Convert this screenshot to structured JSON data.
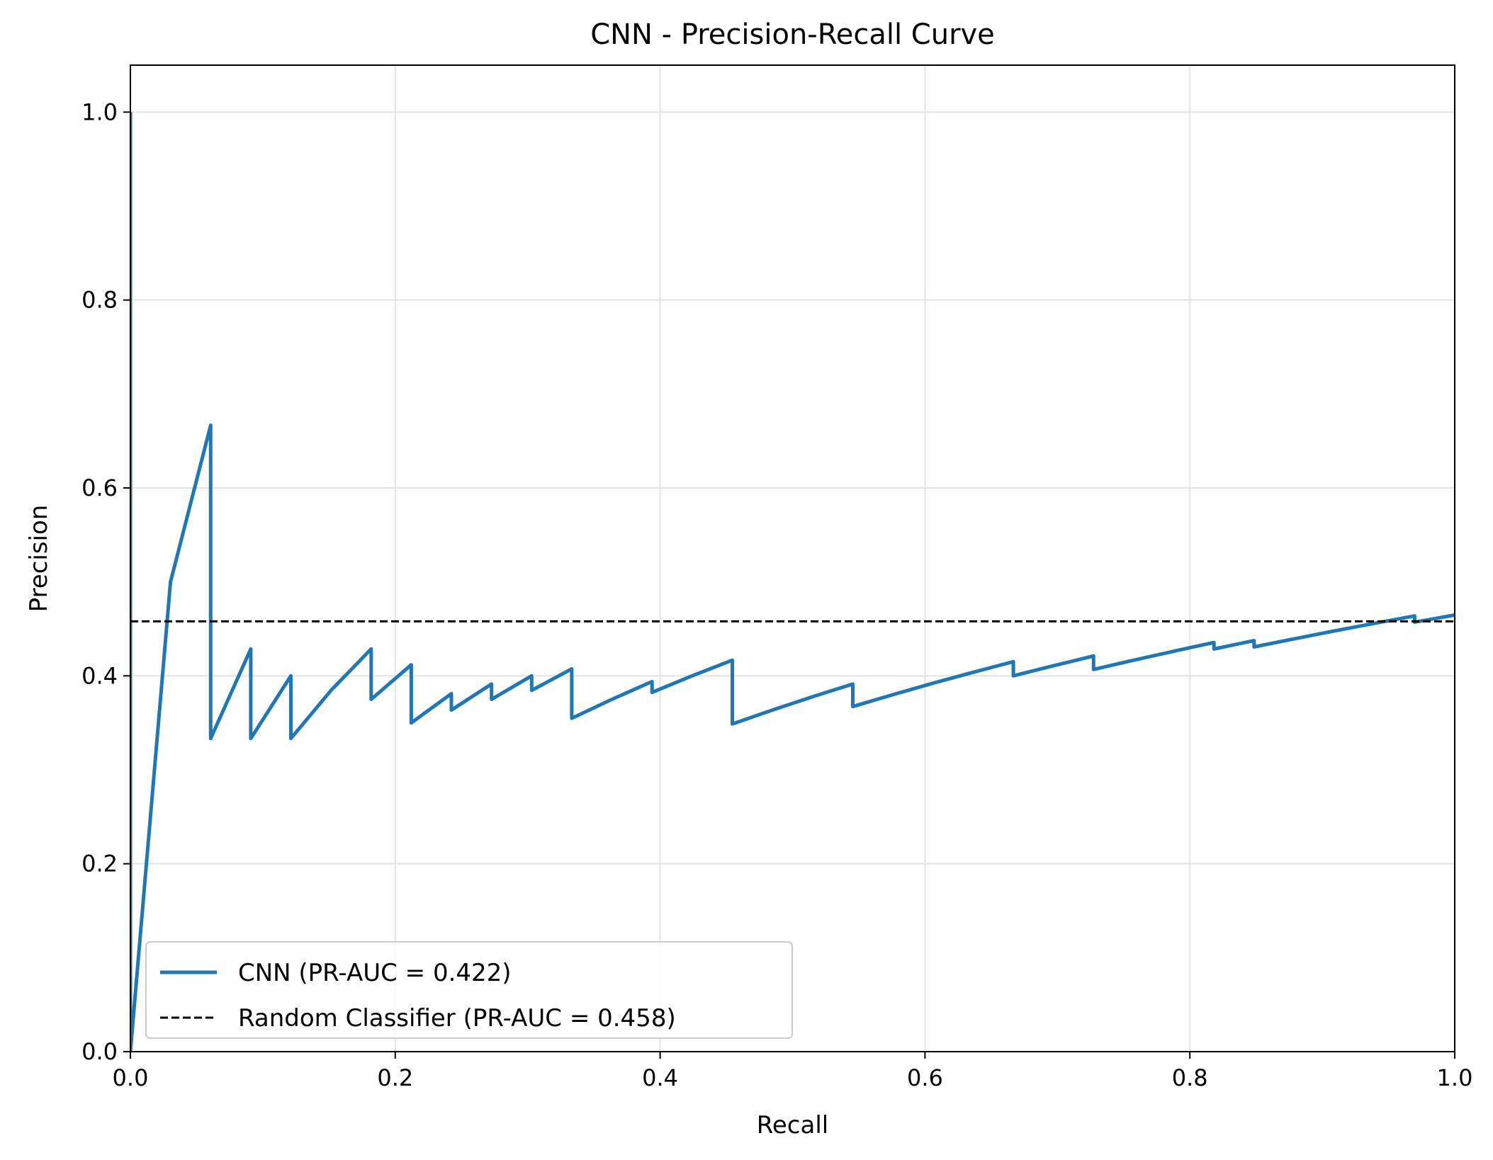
{
  "chart_data": {
    "type": "line",
    "title": "CNN - Precision-Recall Curve",
    "xlabel": "Recall",
    "ylabel": "Precision",
    "xlim": [
      0.0,
      1.0
    ],
    "ylim": [
      0.0,
      1.05
    ],
    "xticks": [
      "0.0",
      "0.2",
      "0.4",
      "0.6",
      "0.8",
      "1.0"
    ],
    "yticks": [
      "0.0",
      "0.2",
      "0.4",
      "0.6",
      "0.8",
      "1.0"
    ],
    "grid": true,
    "legend_position": "lower-left",
    "series": [
      {
        "name": "CNN (PR-AUC = 0.422)",
        "color": "#1f77b4",
        "style": "solid",
        "x": [
          0.0,
          0.0,
          0.0303,
          0.0606,
          0.0606,
          0.0909,
          0.0909,
          0.1212,
          0.1212,
          0.1515,
          0.1818,
          0.1818,
          0.2121,
          0.2121,
          0.2424,
          0.2424,
          0.2727,
          0.2727,
          0.303,
          0.303,
          0.3333,
          0.3333,
          0.3636,
          0.3939,
          0.3939,
          0.4242,
          0.4545,
          0.4545,
          0.4848,
          0.5152,
          0.5455,
          0.5455,
          0.5758,
          0.6061,
          0.6364,
          0.6667,
          0.6667,
          0.697,
          0.7273,
          0.7273,
          0.7576,
          0.7879,
          0.8182,
          0.8182,
          0.8485,
          0.8485,
          0.8788,
          0.9091,
          0.9394,
          0.9697,
          0.9697,
          1.0
        ],
        "y": [
          1.0,
          0.0,
          0.5,
          0.6667,
          0.3333,
          0.4286,
          0.3333,
          0.4,
          0.3333,
          0.3846,
          0.4286,
          0.375,
          0.4118,
          0.35,
          0.381,
          0.3636,
          0.3913,
          0.375,
          0.4,
          0.3846,
          0.4074,
          0.3548,
          0.375,
          0.3939,
          0.3824,
          0.4,
          0.4167,
          0.3488,
          0.3636,
          0.3778,
          0.3913,
          0.3673,
          0.38,
          0.3922,
          0.4038,
          0.4151,
          0.4,
          0.4107,
          0.4211,
          0.4068,
          0.4167,
          0.4262,
          0.4355,
          0.4286,
          0.4375,
          0.4308,
          0.4394,
          0.4478,
          0.4559,
          0.4638,
          0.4571,
          0.4648
        ]
      },
      {
        "name": "Random Classifier (PR-AUC = 0.458)",
        "color": "#000000",
        "style": "dashed",
        "x": [
          0.0,
          1.0
        ],
        "y": [
          0.458,
          0.458
        ]
      }
    ]
  }
}
